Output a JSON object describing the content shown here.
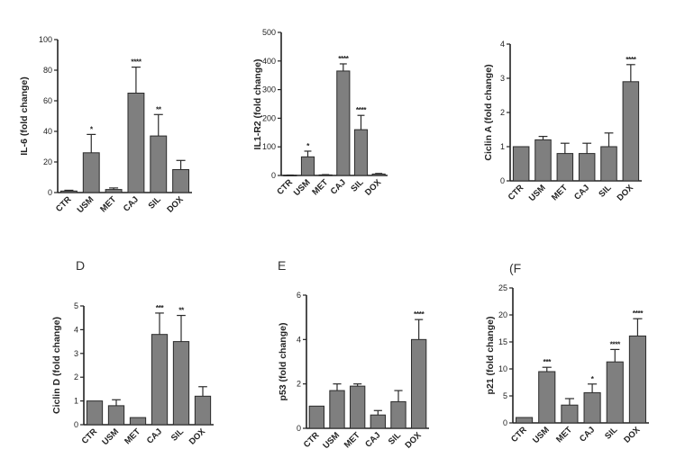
{
  "chart_data": [
    {
      "type": "bar",
      "panel_letter": "",
      "ylabel": "IL-6 (fold change)",
      "ylim": [
        0,
        100
      ],
      "yticks": [
        0,
        20,
        40,
        60,
        80,
        100
      ],
      "ytick_labels": [
        "0",
        "20",
        "40",
        "60",
        "80",
        "100"
      ],
      "categories": [
        "CTR",
        "USM",
        "MET",
        "CAJ",
        "SIL",
        "DOX"
      ],
      "values": [
        1,
        26,
        2,
        65,
        37,
        15
      ],
      "errors": [
        0.5,
        12,
        1,
        17,
        14,
        6
      ],
      "significance": [
        "",
        "*",
        "",
        "****",
        "**",
        ""
      ]
    },
    {
      "type": "bar",
      "panel_letter": "",
      "ylabel": "IL1-R2 (fold change)",
      "ylim": [
        0,
        500
      ],
      "yticks": [
        0,
        100,
        200,
        300,
        400,
        500
      ],
      "ytick_labels": [
        "0",
        "100",
        "200",
        "300",
        "400",
        "500"
      ],
      "categories": [
        "CTR",
        "USM",
        "MET",
        "CAJ",
        "SIL",
        "DOX"
      ],
      "values": [
        1,
        65,
        2,
        365,
        160,
        5
      ],
      "errors": [
        0.5,
        20,
        1,
        25,
        50,
        2
      ],
      "significance": [
        "",
        "*",
        "",
        "****",
        "****",
        ""
      ]
    },
    {
      "type": "bar",
      "panel_letter": "",
      "ylabel": "Ciclin  A (fold change)",
      "ylim": [
        0,
        4
      ],
      "yticks": [
        0,
        1,
        2,
        3,
        4
      ],
      "ytick_labels": [
        "0",
        "1",
        "2",
        "3",
        "4"
      ],
      "categories": [
        "CTR",
        "USM",
        "MET",
        "CAJ",
        "SIL",
        "DOX"
      ],
      "values": [
        1,
        1.2,
        0.8,
        0.8,
        1,
        2.9
      ],
      "errors": [
        0,
        0.1,
        0.3,
        0.3,
        0.4,
        0.5
      ],
      "significance": [
        "",
        "",
        "",
        "",
        "",
        "****"
      ]
    },
    {
      "type": "bar",
      "panel_letter": "D",
      "ylabel": "Ciclin  D (fold change)",
      "ylim": [
        0,
        5
      ],
      "yticks": [
        0,
        1,
        2,
        3,
        4,
        5
      ],
      "ytick_labels": [
        "0",
        "1",
        "2",
        "3",
        "4",
        "5"
      ],
      "categories": [
        "CTR",
        "USM",
        "MET",
        "CAJ",
        "SIL",
        "DOX"
      ],
      "values": [
        1,
        0.8,
        0.3,
        3.8,
        3.5,
        1.2
      ],
      "errors": [
        0,
        0.25,
        0,
        0.9,
        1.1,
        0.4
      ],
      "significance": [
        "",
        "",
        "",
        "***",
        "**",
        ""
      ]
    },
    {
      "type": "bar",
      "panel_letter": "E",
      "ylabel": "p53 (fold change)",
      "ylim": [
        0,
        6
      ],
      "yticks": [
        0,
        2,
        4,
        6
      ],
      "ytick_labels": [
        "0",
        "2",
        "4",
        "6"
      ],
      "categories": [
        "CTR",
        "USM",
        "MET",
        "CAJ",
        "SIL",
        "DOX"
      ],
      "values": [
        1,
        1.7,
        1.9,
        0.6,
        1.2,
        4
      ],
      "errors": [
        0,
        0.3,
        0.1,
        0.2,
        0.5,
        0.9
      ],
      "significance": [
        "",
        "",
        "",
        "",
        "",
        "****"
      ]
    },
    {
      "type": "bar",
      "panel_letter": "(F",
      "ylabel": "p21 (fold change)",
      "ylim": [
        0,
        25
      ],
      "yticks": [
        0,
        5,
        10,
        15,
        20,
        25
      ],
      "ytick_labels": [
        "0",
        "5",
        "10",
        "15",
        "20",
        "25"
      ],
      "categories": [
        "CTR",
        "USM",
        "MET",
        "CAJ",
        "SIL",
        "DOX"
      ],
      "values": [
        1,
        9.5,
        3.3,
        5.6,
        11.3,
        16.1
      ],
      "errors": [
        0,
        0.8,
        1.2,
        1.6,
        2.3,
        3.2
      ],
      "significance": [
        "",
        "***",
        "",
        "*",
        "****",
        "****"
      ]
    }
  ]
}
